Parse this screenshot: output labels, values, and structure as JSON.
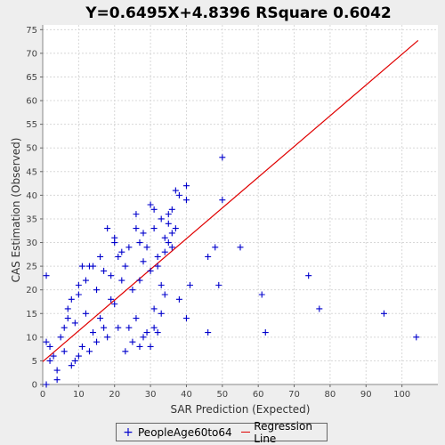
{
  "chart_data": {
    "type": "scatter",
    "title": "Y=0.6495X+4.8396    RSquare 0.6042",
    "xlabel": "SAR Prediction (Expected)",
    "ylabel": "CAS Estimation (Observed)",
    "xlim": [
      0,
      110
    ],
    "ylim": [
      0,
      76
    ],
    "xticks": [
      "0",
      "10",
      "20",
      "30",
      "40",
      "50",
      "60",
      "70",
      "80",
      "90",
      "100"
    ],
    "yticks": [
      "0",
      "5",
      "10",
      "15",
      "20",
      "25",
      "30",
      "35",
      "40",
      "45",
      "50",
      "55",
      "60",
      "65",
      "70",
      "75"
    ],
    "grid": true,
    "legend_position": "bottom",
    "colors": {
      "points": "#0000cc",
      "regression": "#e00000",
      "plot_bg": "#ffffff",
      "grid": "#d8d8d8"
    },
    "series": [
      {
        "name": "PeopleAge60to64",
        "kind": "scatter",
        "points": [
          [
            1,
            23
          ],
          [
            1,
            0
          ],
          [
            1,
            9
          ],
          [
            2,
            8
          ],
          [
            2,
            5
          ],
          [
            3,
            6
          ],
          [
            4,
            3
          ],
          [
            4,
            1
          ],
          [
            5,
            10
          ],
          [
            6,
            7
          ],
          [
            6,
            12
          ],
          [
            7,
            14
          ],
          [
            7,
            16
          ],
          [
            8,
            4
          ],
          [
            8,
            18
          ],
          [
            9,
            5
          ],
          [
            9,
            13
          ],
          [
            10,
            6
          ],
          [
            10,
            19
          ],
          [
            10,
            21
          ],
          [
            11,
            8
          ],
          [
            11,
            25
          ],
          [
            12,
            15
          ],
          [
            12,
            22
          ],
          [
            13,
            7
          ],
          [
            13,
            25
          ],
          [
            14,
            11
          ],
          [
            14,
            25
          ],
          [
            15,
            9
          ],
          [
            15,
            20
          ],
          [
            16,
            14
          ],
          [
            16,
            27
          ],
          [
            17,
            12
          ],
          [
            17,
            24
          ],
          [
            18,
            33
          ],
          [
            18,
            10
          ],
          [
            19,
            23
          ],
          [
            19,
            18
          ],
          [
            20,
            30
          ],
          [
            20,
            31
          ],
          [
            20,
            17
          ],
          [
            21,
            12
          ],
          [
            21,
            27
          ],
          [
            22,
            22
          ],
          [
            22,
            28
          ],
          [
            23,
            7
          ],
          [
            23,
            25
          ],
          [
            24,
            12
          ],
          [
            24,
            29
          ],
          [
            25,
            9
          ],
          [
            25,
            20
          ],
          [
            26,
            36
          ],
          [
            26,
            33
          ],
          [
            26,
            14
          ],
          [
            27,
            30
          ],
          [
            27,
            8
          ],
          [
            27,
            22
          ],
          [
            28,
            32
          ],
          [
            28,
            10
          ],
          [
            28,
            26
          ],
          [
            29,
            29
          ],
          [
            29,
            11
          ],
          [
            30,
            38
          ],
          [
            30,
            24
          ],
          [
            30,
            8
          ],
          [
            31,
            37
          ],
          [
            31,
            33
          ],
          [
            31,
            16
          ],
          [
            31,
            12
          ],
          [
            32,
            25
          ],
          [
            32,
            27
          ],
          [
            32,
            11
          ],
          [
            33,
            35
          ],
          [
            33,
            21
          ],
          [
            33,
            15
          ],
          [
            34,
            31
          ],
          [
            34,
            28
          ],
          [
            34,
            19
          ],
          [
            35,
            34
          ],
          [
            35,
            36
          ],
          [
            35,
            30
          ],
          [
            36,
            37
          ],
          [
            36,
            32
          ],
          [
            36,
            29
          ],
          [
            37,
            41
          ],
          [
            37,
            33
          ],
          [
            38,
            40
          ],
          [
            38,
            18
          ],
          [
            40,
            42
          ],
          [
            40,
            39
          ],
          [
            40,
            14
          ],
          [
            41,
            21
          ],
          [
            46,
            27
          ],
          [
            46,
            11
          ],
          [
            48,
            29
          ],
          [
            49,
            21
          ],
          [
            50,
            48
          ],
          [
            50,
            39
          ],
          [
            55,
            29
          ],
          [
            61,
            19
          ],
          [
            62,
            11
          ],
          [
            74,
            23
          ],
          [
            77,
            16
          ],
          [
            95,
            15
          ],
          [
            104,
            10
          ]
        ]
      },
      {
        "name": "Regression Line",
        "kind": "line",
        "slope": 0.6495,
        "intercept": 4.8396,
        "x_range": [
          0,
          104.5
        ]
      }
    ]
  }
}
